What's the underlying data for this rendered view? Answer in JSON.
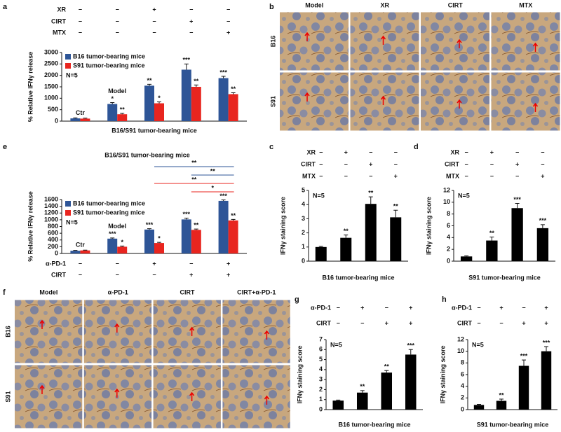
{
  "panel_labels": [
    "a",
    "b",
    "c",
    "d",
    "e",
    "f",
    "g",
    "h"
  ],
  "micrographs": [
    {
      "columns": [
        "Model",
        "XR",
        "CIRT",
        "MTX"
      ],
      "rows": [
        "B16",
        "S91"
      ]
    },
    {
      "columns": [
        "Model",
        "α-PD-1",
        "CIRT",
        "CIRT+α-PD-1"
      ],
      "rows": [
        "B16",
        "S91"
      ]
    }
  ],
  "chart_data": [
    {
      "type": "bar",
      "xlabel": "B16/S91 tumor-bearing mice",
      "ylabel": "% Relative IFNγ release",
      "note": "N=5",
      "conditions": [
        {
          "name": "XR",
          "signs": [
            "−",
            "−",
            "+",
            "−",
            "−"
          ]
        },
        {
          "name": "CIRT",
          "signs": [
            "−",
            "−",
            "−",
            "+",
            "−"
          ]
        },
        {
          "name": "MTX",
          "signs": [
            "−",
            "−",
            "−",
            "−",
            "+"
          ]
        }
      ],
      "group_labels": [
        "Ctr",
        "Model",
        null,
        null,
        null
      ],
      "series": [
        {
          "name": "B16 tumor-bearing mice",
          "color": "#2e5597",
          "values": [
            120,
            750,
            1550,
            2250,
            1880
          ],
          "errors": [
            20,
            60,
            60,
            250,
            80
          ],
          "significance": [
            null,
            "*",
            "**",
            "***",
            "***"
          ]
        },
        {
          "name": "S91 tumor-bearing mice",
          "color": "#e8251f",
          "values": [
            110,
            300,
            780,
            1500,
            1180
          ],
          "errors": [
            20,
            40,
            60,
            80,
            60
          ],
          "significance": [
            null,
            "**",
            "*",
            "**",
            "**"
          ]
        }
      ],
      "ylim": [
        0,
        3000
      ],
      "yticks": [
        0,
        500,
        1000,
        1500,
        2000,
        2500,
        3000
      ],
      "legend": "upper left"
    },
    {
      "type": "bar",
      "title": "B16/S91 tumor-bearing mice",
      "ylabel": "% Relative IFNγ release",
      "note": "N=5",
      "conditions": [
        {
          "name": "α-PD-1",
          "signs": [
            "−",
            "−",
            "+",
            "−",
            "+"
          ]
        },
        {
          "name": "CIRT",
          "signs": [
            "−",
            "−",
            "−",
            "+",
            "+"
          ]
        }
      ],
      "group_labels": [
        "Ctr",
        "Model",
        null,
        null,
        null
      ],
      "series": [
        {
          "name": "B16 tumor-bearing mice",
          "color": "#2e5597",
          "values": [
            80,
            440,
            710,
            1010,
            1560
          ],
          "errors": [
            10,
            20,
            25,
            40,
            30
          ],
          "significance": [
            null,
            "***",
            "***",
            "***",
            "***"
          ]
        },
        {
          "name": "S91 tumor-bearing mice",
          "color": "#e8251f",
          "values": [
            90,
            200,
            310,
            700,
            980
          ],
          "errors": [
            10,
            20,
            20,
            25,
            30
          ],
          "significance": [
            null,
            "*",
            "*",
            "**",
            "**"
          ]
        }
      ],
      "comparisons": [
        {
          "label": "**",
          "color": "#2e5597"
        },
        {
          "label": "**",
          "color": "#2e5597"
        },
        {
          "label": "**",
          "color": "#e8251f"
        },
        {
          "label": "*",
          "color": "#e8251f"
        }
      ],
      "ylim": [
        0,
        1600
      ],
      "yticks": [
        0,
        200,
        400,
        600,
        800,
        1000,
        1200,
        1400,
        1600
      ],
      "legend": "upper left"
    },
    {
      "type": "bar",
      "xlabel": "B16 tumor-bearing mice",
      "ylabel": "IFNγ staining score",
      "note": "N=5",
      "color": "#000000",
      "conditions": [
        {
          "name": "XR",
          "signs": [
            "−",
            "+",
            "−",
            "−"
          ]
        },
        {
          "name": "CIRT",
          "signs": [
            "−",
            "−",
            "+",
            "−"
          ]
        },
        {
          "name": "MTX",
          "signs": [
            "−",
            "−",
            "−",
            "+"
          ]
        }
      ],
      "values": [
        1.0,
        1.65,
        4.05,
        3.1
      ],
      "errors": [
        0.05,
        0.2,
        0.5,
        0.5
      ],
      "significance": [
        null,
        "**",
        "**",
        "**"
      ],
      "ylim": [
        0,
        5
      ],
      "yticks": [
        0,
        1,
        2,
        3,
        4,
        5
      ]
    },
    {
      "type": "bar",
      "xlabel": "S91 tumor-bearing mice",
      "ylabel": "IFNγ staining score",
      "note": "N=5",
      "color": "#000000",
      "conditions": [
        {
          "name": "XR",
          "signs": [
            "−",
            "+",
            "−",
            "−"
          ]
        },
        {
          "name": "CIRT",
          "signs": [
            "−",
            "−",
            "+",
            "−"
          ]
        },
        {
          "name": "MTX",
          "signs": [
            "−",
            "−",
            "−",
            "+"
          ]
        }
      ],
      "values": [
        0.8,
        3.5,
        9.0,
        5.6
      ],
      "errors": [
        0.1,
        0.6,
        0.8,
        0.6
      ],
      "significance": [
        null,
        "**",
        "***",
        "***"
      ],
      "ylim": [
        0,
        12
      ],
      "yticks": [
        0,
        2,
        4,
        6,
        8,
        10,
        12
      ]
    },
    {
      "type": "bar",
      "xlabel": "B16 tumor-bearing mice",
      "ylabel": "IFNγ staining score",
      "note": "N=5",
      "color": "#000000",
      "conditions": [
        {
          "name": "α-PD-1",
          "signs": [
            "−",
            "+",
            "−",
            "+"
          ]
        },
        {
          "name": "CIRT",
          "signs": [
            "−",
            "−",
            "+",
            "+"
          ]
        }
      ],
      "values": [
        0.9,
        1.7,
        3.7,
        5.5
      ],
      "errors": [
        0.05,
        0.2,
        0.2,
        0.5
      ],
      "significance": [
        null,
        "**",
        "**",
        "***"
      ],
      "ylim": [
        0,
        7
      ],
      "yticks": [
        0,
        1,
        2,
        3,
        4,
        5,
        6,
        7
      ]
    },
    {
      "type": "bar",
      "xlabel": "S91 tumor-bearing mice",
      "ylabel": "IFNγ staining score",
      "note": "N=5",
      "color": "#000000",
      "conditions": [
        {
          "name": "α-PD-1",
          "signs": [
            "−",
            "+",
            "−",
            "+"
          ]
        },
        {
          "name": "CIRT",
          "signs": [
            "−",
            "−",
            "+",
            "+"
          ]
        }
      ],
      "values": [
        0.8,
        1.5,
        7.5,
        10.0
      ],
      "errors": [
        0.1,
        0.3,
        1.0,
        0.8
      ],
      "significance": [
        null,
        "**",
        "***",
        "***"
      ],
      "ylim": [
        0,
        12
      ],
      "yticks": [
        0,
        2,
        4,
        6,
        8,
        10,
        12
      ]
    }
  ]
}
